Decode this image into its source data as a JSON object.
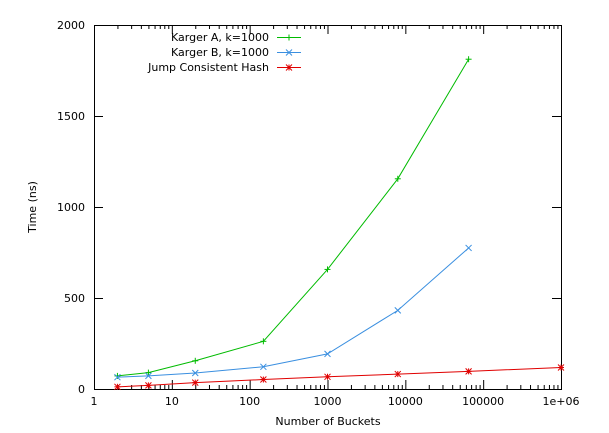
{
  "chart_data": {
    "type": "line",
    "xlabel": "Number of Buckets",
    "ylabel": "Time (ns)",
    "xscale": "log",
    "xlim": [
      1,
      1000000
    ],
    "ylim": [
      0,
      2000
    ],
    "grid": false,
    "legend_position": "top-left",
    "x_ticks": [
      1,
      10,
      100,
      1000,
      10000,
      100000,
      1000000
    ],
    "x_tick_labels": [
      "1",
      "10",
      "100",
      "1000",
      "10000",
      "100000",
      "1e+06"
    ],
    "y_ticks": [
      0,
      500,
      1000,
      1500,
      2000
    ],
    "y_tick_labels": [
      "0",
      "500",
      "1000",
      "1500",
      "2000"
    ],
    "series": [
      {
        "name": "Karger A, k=1000",
        "color": "#00bb00",
        "marker": "+",
        "x": [
          2,
          5,
          20,
          150,
          1000,
          8000,
          65000
        ],
        "y": [
          72,
          90,
          155,
          262,
          657,
          1155,
          1812
        ]
      },
      {
        "name": "Karger B, k=1000",
        "color": "#3a8fe0",
        "marker": "x",
        "x": [
          2,
          5,
          20,
          150,
          1000,
          8000,
          65000
        ],
        "y": [
          65,
          72,
          88,
          122,
          193,
          432,
          775
        ]
      },
      {
        "name": "Jump Consistent Hash",
        "color": "#e00000",
        "marker": "*",
        "x": [
          2,
          5,
          20,
          150,
          1000,
          8000,
          65000,
          1000000
        ],
        "y": [
          12,
          20,
          35,
          52,
          67,
          82,
          97,
          118
        ]
      }
    ]
  }
}
